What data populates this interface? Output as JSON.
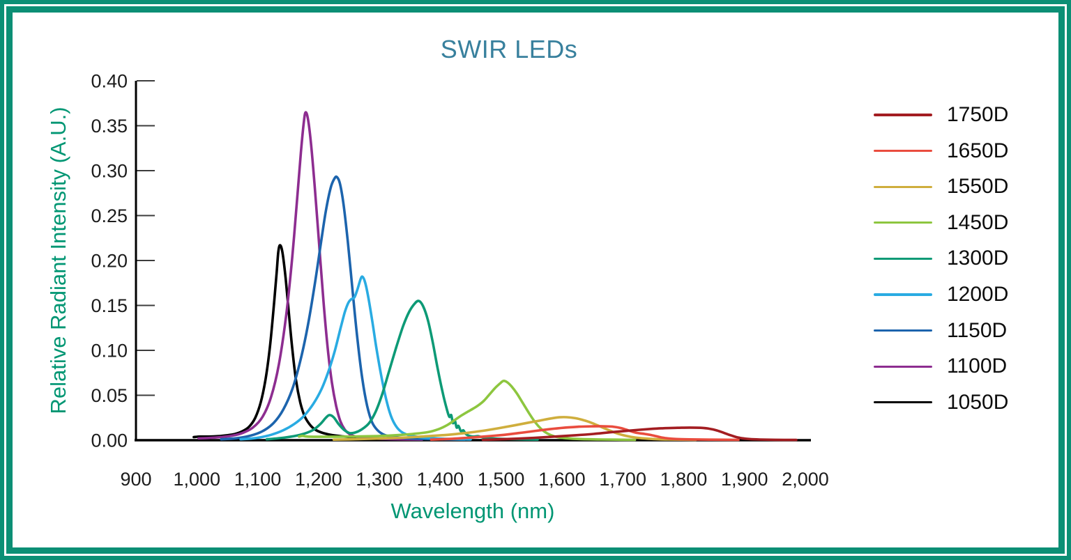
{
  "title": "SWIR LEDs",
  "colors": {
    "frame": "#0b8f75",
    "title_text": "#38809d",
    "axis_title_text": "#009673",
    "tick_text": "#1c1c1c",
    "axis_line": "#000000",
    "tick_line": "#3c3c3c"
  },
  "chart_data": {
    "type": "line",
    "title": "SWIR LEDs",
    "xlabel": "Wavelength (nm)",
    "ylabel": "Relative Radiant Intensity (A.U.)",
    "xlim": [
      900,
      2000
    ],
    "ylim": [
      0.0,
      0.4
    ],
    "grid": false,
    "legend_position": "right",
    "x_ticks": {
      "values": [
        900,
        1000,
        1100,
        1200,
        1300,
        1400,
        1500,
        1600,
        1700,
        1800,
        1900,
        2000
      ],
      "labels": [
        "900",
        "1,000",
        "1,100",
        "1,200",
        "1,300",
        "1,400",
        "1,500",
        "1,600",
        "1,700",
        "1,800",
        "1,900",
        "2,000"
      ]
    },
    "y_ticks": {
      "values": [
        0.0,
        0.05,
        0.1,
        0.15,
        0.2,
        0.25,
        0.3,
        0.35,
        0.4
      ],
      "labels": [
        "0.00",
        "0.05",
        "0.10",
        "0.15",
        "0.20",
        "0.25",
        "0.30",
        "0.35",
        "0.40"
      ]
    },
    "series": [
      {
        "name": "1750D",
        "color": "#a31d21",
        "points": [
          [
            1470,
            0.0005
          ],
          [
            1510,
            0.0013
          ],
          [
            1550,
            0.0025
          ],
          [
            1588,
            0.004
          ],
          [
            1622,
            0.0055
          ],
          [
            1652,
            0.007
          ],
          [
            1680,
            0.0088
          ],
          [
            1705,
            0.0103
          ],
          [
            1728,
            0.0116
          ],
          [
            1750,
            0.0127
          ],
          [
            1770,
            0.0134
          ],
          [
            1790,
            0.0138
          ],
          [
            1810,
            0.014
          ],
          [
            1828,
            0.0138
          ],
          [
            1842,
            0.0128
          ],
          [
            1855,
            0.0108
          ],
          [
            1866,
            0.0082
          ],
          [
            1876,
            0.0057
          ],
          [
            1886,
            0.0036
          ],
          [
            1896,
            0.0022
          ],
          [
            1908,
            0.0013
          ],
          [
            1925,
            0.0008
          ],
          [
            1950,
            0.0005
          ],
          [
            1985,
            0.0003
          ]
        ]
      },
      {
        "name": "1650D",
        "color": "#e94c3e",
        "points": [
          [
            1385,
            0.0006
          ],
          [
            1415,
            0.0014
          ],
          [
            1445,
            0.0026
          ],
          [
            1475,
            0.0042
          ],
          [
            1505,
            0.006
          ],
          [
            1532,
            0.0082
          ],
          [
            1558,
            0.0105
          ],
          [
            1582,
            0.0125
          ],
          [
            1605,
            0.014
          ],
          [
            1628,
            0.015
          ],
          [
            1650,
            0.0154
          ],
          [
            1668,
            0.0155
          ],
          [
            1684,
            0.015
          ],
          [
            1697,
            0.0135
          ],
          [
            1708,
            0.0112
          ],
          [
            1717,
            0.0092
          ],
          [
            1726,
            0.0078
          ],
          [
            1736,
            0.007
          ],
          [
            1746,
            0.0058
          ],
          [
            1755,
            0.0044
          ],
          [
            1764,
            0.003
          ],
          [
            1774,
            0.002
          ],
          [
            1788,
            0.0013
          ],
          [
            1810,
            0.0009
          ],
          [
            1845,
            0.0006
          ],
          [
            1890,
            0.0004
          ]
        ]
      },
      {
        "name": "1550D",
        "color": "#cfae3d",
        "points": [
          [
            1225,
            0.0006
          ],
          [
            1265,
            0.0012
          ],
          [
            1305,
            0.002
          ],
          [
            1345,
            0.003
          ],
          [
            1380,
            0.0045
          ],
          [
            1412,
            0.006
          ],
          [
            1442,
            0.008
          ],
          [
            1470,
            0.0105
          ],
          [
            1497,
            0.0135
          ],
          [
            1522,
            0.0165
          ],
          [
            1545,
            0.0195
          ],
          [
            1565,
            0.022
          ],
          [
            1582,
            0.0242
          ],
          [
            1596,
            0.0255
          ],
          [
            1608,
            0.0256
          ],
          [
            1622,
            0.0245
          ],
          [
            1636,
            0.0222
          ],
          [
            1650,
            0.019
          ],
          [
            1663,
            0.0152
          ],
          [
            1676,
            0.0115
          ],
          [
            1688,
            0.0082
          ],
          [
            1700,
            0.0057
          ],
          [
            1713,
            0.0038
          ],
          [
            1728,
            0.0024
          ],
          [
            1748,
            0.0014
          ],
          [
            1775,
            0.0008
          ],
          [
            1820,
            0.0004
          ]
        ]
      },
      {
        "name": "1450D",
        "color": "#8dc63f",
        "points": [
          [
            1168,
            0.004
          ],
          [
            1174,
            0.0048
          ],
          [
            1182,
            0.004
          ],
          [
            1210,
            0.0038
          ],
          [
            1250,
            0.004
          ],
          [
            1290,
            0.0045
          ],
          [
            1325,
            0.0055
          ],
          [
            1355,
            0.007
          ],
          [
            1380,
            0.009
          ],
          [
            1398,
            0.0125
          ],
          [
            1412,
            0.017
          ],
          [
            1425,
            0.023
          ],
          [
            1436,
            0.028
          ],
          [
            1446,
            0.032
          ],
          [
            1455,
            0.0355
          ],
          [
            1463,
            0.039
          ],
          [
            1472,
            0.044
          ],
          [
            1481,
            0.051
          ],
          [
            1490,
            0.058
          ],
          [
            1498,
            0.063
          ],
          [
            1504,
            0.066
          ],
          [
            1510,
            0.0645
          ],
          [
            1517,
            0.06
          ],
          [
            1526,
            0.052
          ],
          [
            1536,
            0.041
          ],
          [
            1546,
            0.03
          ],
          [
            1556,
            0.02
          ],
          [
            1566,
            0.0125
          ],
          [
            1576,
            0.0075
          ],
          [
            1588,
            0.0042
          ],
          [
            1602,
            0.0025
          ],
          [
            1625,
            0.0014
          ],
          [
            1665,
            0.0008
          ],
          [
            1720,
            0.0004
          ]
        ]
      },
      {
        "name": "1300D",
        "color": "#0d9a76",
        "points": [
          [
            1115,
            0.001
          ],
          [
            1145,
            0.003
          ],
          [
            1170,
            0.006
          ],
          [
            1190,
            0.011
          ],
          [
            1203,
            0.018
          ],
          [
            1212,
            0.025
          ],
          [
            1218,
            0.028
          ],
          [
            1225,
            0.0255
          ],
          [
            1233,
            0.018
          ],
          [
            1242,
            0.0115
          ],
          [
            1251,
            0.008
          ],
          [
            1260,
            0.0085
          ],
          [
            1271,
            0.012
          ],
          [
            1283,
            0.019
          ],
          [
            1294,
            0.032
          ],
          [
            1305,
            0.052
          ],
          [
            1316,
            0.077
          ],
          [
            1328,
            0.104
          ],
          [
            1339,
            0.127
          ],
          [
            1349,
            0.143
          ],
          [
            1358,
            0.152
          ],
          [
            1365,
            0.155
          ],
          [
            1372,
            0.149
          ],
          [
            1380,
            0.133
          ],
          [
            1388,
            0.108
          ],
          [
            1396,
            0.079
          ],
          [
            1404,
            0.053
          ],
          [
            1411,
            0.034
          ],
          [
            1415,
            0.026
          ],
          [
            1418,
            0.028
          ],
          [
            1421,
            0.019
          ],
          [
            1424,
            0.022
          ],
          [
            1427,
            0.014
          ],
          [
            1430,
            0.016
          ],
          [
            1434,
            0.01
          ],
          [
            1438,
            0.011
          ],
          [
            1442,
            0.007
          ],
          [
            1447,
            0.005
          ],
          [
            1454,
            0.004
          ],
          [
            1462,
            0.0045
          ],
          [
            1470,
            0.003
          ],
          [
            1485,
            0.002
          ],
          [
            1510,
            0.0013
          ],
          [
            1560,
            0.0007
          ]
        ]
      },
      {
        "name": "1200D",
        "color": "#29abe2",
        "points": [
          [
            1072,
            0.001
          ],
          [
            1098,
            0.0025
          ],
          [
            1122,
            0.006
          ],
          [
            1142,
            0.011
          ],
          [
            1160,
            0.018
          ],
          [
            1176,
            0.027
          ],
          [
            1191,
            0.04
          ],
          [
            1205,
            0.057
          ],
          [
            1217,
            0.078
          ],
          [
            1227,
            0.1
          ],
          [
            1236,
            0.124
          ],
          [
            1243,
            0.142
          ],
          [
            1249,
            0.153
          ],
          [
            1254,
            0.157
          ],
          [
            1259,
            0.159
          ],
          [
            1264,
            0.168
          ],
          [
            1269,
            0.179
          ],
          [
            1272,
            0.182
          ],
          [
            1276,
            0.177
          ],
          [
            1281,
            0.162
          ],
          [
            1288,
            0.134
          ],
          [
            1295,
            0.103
          ],
          [
            1303,
            0.072
          ],
          [
            1311,
            0.046
          ],
          [
            1319,
            0.027
          ],
          [
            1328,
            0.015
          ],
          [
            1338,
            0.0085
          ],
          [
            1352,
            0.005
          ],
          [
            1372,
            0.003
          ],
          [
            1405,
            0.0016
          ],
          [
            1450,
            0.0008
          ]
        ]
      },
      {
        "name": "1150D",
        "color": "#1c64ad",
        "points": [
          [
            1040,
            0.001
          ],
          [
            1065,
            0.0022
          ],
          [
            1088,
            0.005
          ],
          [
            1108,
            0.01
          ],
          [
            1126,
            0.019
          ],
          [
            1142,
            0.034
          ],
          [
            1157,
            0.057
          ],
          [
            1170,
            0.088
          ],
          [
            1182,
            0.126
          ],
          [
            1193,
            0.17
          ],
          [
            1203,
            0.215
          ],
          [
            1212,
            0.255
          ],
          [
            1220,
            0.281
          ],
          [
            1226,
            0.291
          ],
          [
            1230,
            0.293
          ],
          [
            1235,
            0.286
          ],
          [
            1241,
            0.263
          ],
          [
            1248,
            0.222
          ],
          [
            1256,
            0.166
          ],
          [
            1264,
            0.112
          ],
          [
            1272,
            0.068
          ],
          [
            1280,
            0.038
          ],
          [
            1288,
            0.02
          ],
          [
            1297,
            0.011
          ],
          [
            1308,
            0.006
          ],
          [
            1322,
            0.0038
          ],
          [
            1345,
            0.0022
          ],
          [
            1385,
            0.0012
          ],
          [
            1440,
            0.0007
          ]
        ]
      },
      {
        "name": "1100D",
        "color": "#8d2d90",
        "points": [
          [
            1003,
            0.002
          ],
          [
            1020,
            0.0025
          ],
          [
            1040,
            0.0035
          ],
          [
            1058,
            0.005
          ],
          [
            1075,
            0.008
          ],
          [
            1092,
            0.014
          ],
          [
            1108,
            0.026
          ],
          [
            1122,
            0.048
          ],
          [
            1135,
            0.085
          ],
          [
            1147,
            0.14
          ],
          [
            1157,
            0.205
          ],
          [
            1165,
            0.27
          ],
          [
            1171,
            0.32
          ],
          [
            1176,
            0.355
          ],
          [
            1179,
            0.365
          ],
          [
            1183,
            0.356
          ],
          [
            1188,
            0.328
          ],
          [
            1194,
            0.28
          ],
          [
            1201,
            0.218
          ],
          [
            1208,
            0.156
          ],
          [
            1215,
            0.103
          ],
          [
            1222,
            0.064
          ],
          [
            1229,
            0.038
          ],
          [
            1236,
            0.021
          ],
          [
            1243,
            0.012
          ],
          [
            1251,
            0.0068
          ],
          [
            1260,
            0.0042
          ],
          [
            1272,
            0.003
          ],
          [
            1290,
            0.002
          ],
          [
            1320,
            0.0012
          ],
          [
            1370,
            0.0007
          ]
        ]
      },
      {
        "name": "1050D",
        "color": "#000000",
        "points": [
          [
            995,
            0.0035
          ],
          [
            1005,
            0.004
          ],
          [
            1020,
            0.004
          ],
          [
            1035,
            0.0045
          ],
          [
            1050,
            0.0055
          ],
          [
            1063,
            0.007
          ],
          [
            1075,
            0.01
          ],
          [
            1086,
            0.015
          ],
          [
            1096,
            0.025
          ],
          [
            1105,
            0.042
          ],
          [
            1113,
            0.068
          ],
          [
            1120,
            0.103
          ],
          [
            1126,
            0.145
          ],
          [
            1131,
            0.185
          ],
          [
            1134,
            0.21
          ],
          [
            1137,
            0.217
          ],
          [
            1141,
            0.208
          ],
          [
            1146,
            0.18
          ],
          [
            1151,
            0.143
          ],
          [
            1157,
            0.101
          ],
          [
            1163,
            0.067
          ],
          [
            1170,
            0.042
          ],
          [
            1177,
            0.027
          ],
          [
            1185,
            0.018
          ],
          [
            1194,
            0.012
          ],
          [
            1205,
            0.0085
          ],
          [
            1220,
            0.006
          ],
          [
            1240,
            0.0042
          ],
          [
            1262,
            0.003
          ],
          [
            1290,
            0.002
          ],
          [
            1330,
            0.0013
          ],
          [
            1390,
            0.0008
          ],
          [
            1450,
            0.0005
          ]
        ]
      }
    ]
  }
}
